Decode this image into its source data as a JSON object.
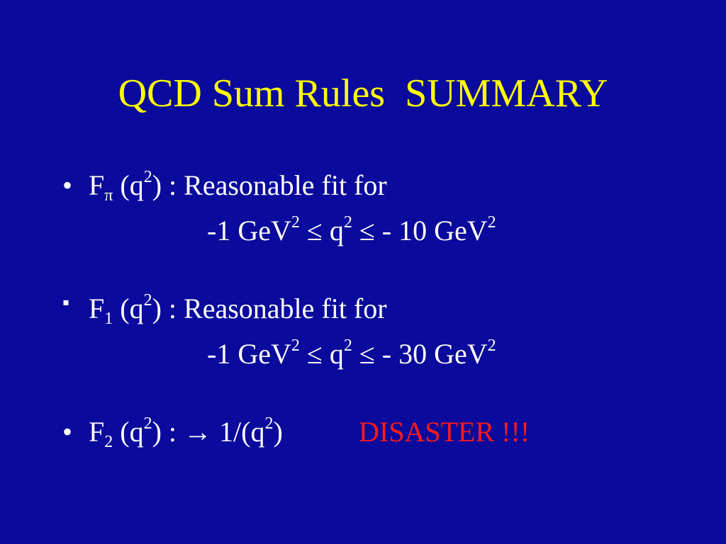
{
  "title": "QCD Sum Rules  SUMMARY",
  "items": [
    {
      "bullet": "•",
      "F": "F",
      "sub": "π",
      "arg": " (q",
      "argsup": "2",
      "rest": ") : Reasonable fit for",
      "range": [
        "-1 GeV",
        "2",
        " ≤ q",
        "2",
        " ≤ - 10 GeV",
        "2"
      ]
    },
    {
      "bullet": "▪",
      "F": "F",
      "sub": "1",
      "arg": " (q",
      "argsup": "2",
      "rest": ") : Reasonable fit for",
      "range": [
        "-1 GeV",
        "2",
        " ≤ q",
        "2",
        " ≤ - 30 GeV",
        "2"
      ]
    },
    {
      "bullet": "•",
      "F": "F",
      "sub": "2",
      "arg": " (q",
      "argsup": "2",
      "rest": ") : → 1/(q",
      "rest_sup": "2",
      "rest2": ")",
      "disaster": "DISASTER !!!"
    }
  ],
  "colors": {
    "background": "#0a0a9c",
    "title": "#ffff00",
    "alert": "#ff1a1a"
  }
}
